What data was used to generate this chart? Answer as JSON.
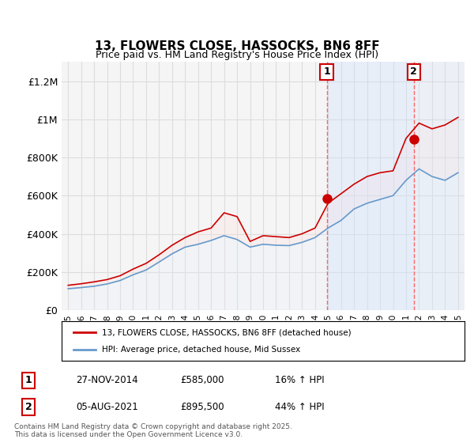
{
  "title": "13, FLOWERS CLOSE, HASSOCKS, BN6 8FF",
  "subtitle": "Price paid vs. HM Land Registry's House Price Index (HPI)",
  "ylabel_ticks": [
    "£0",
    "£200K",
    "£400K",
    "£600K",
    "£800K",
    "£1M",
    "£1.2M"
  ],
  "ytick_vals": [
    0,
    200000,
    400000,
    600000,
    800000,
    1000000,
    1200000
  ],
  "ylim": [
    0,
    1300000
  ],
  "xlim_start": 1995.0,
  "xlim_end": 2025.5,
  "background_color": "#ffffff",
  "plot_bg_color": "#f5f5f5",
  "grid_color": "#dddddd",
  "red_line_color": "#cc0000",
  "blue_line_color": "#6699cc",
  "blue_fill_color": "#ddeeff",
  "red_fill_color": "#ffdddd",
  "marker1_x": 2014.9,
  "marker1_y": 585000,
  "marker1_label": "1",
  "marker1_date": "27-NOV-2014",
  "marker1_price": "£585,000",
  "marker1_hpi": "16% ↑ HPI",
  "marker2_x": 2021.6,
  "marker2_y": 895500,
  "marker2_label": "2",
  "marker2_date": "05-AUG-2021",
  "marker2_price": "£895,500",
  "marker2_hpi": "44% ↑ HPI",
  "vline_color": "#ff4444",
  "legend_label_red": "13, FLOWERS CLOSE, HASSOCKS, BN6 8FF (detached house)",
  "legend_label_blue": "HPI: Average price, detached house, Mid Sussex",
  "footer_text": "Contains HM Land Registry data © Crown copyright and database right 2025.\nThis data is licensed under the Open Government Licence v3.0.",
  "x_years": [
    1995,
    1996,
    1997,
    1998,
    1999,
    2000,
    2001,
    2002,
    2003,
    2004,
    2005,
    2006,
    2007,
    2008,
    2009,
    2010,
    2011,
    2012,
    2013,
    2014,
    2015,
    2016,
    2017,
    2018,
    2019,
    2020,
    2021,
    2022,
    2023,
    2024,
    2025
  ],
  "hpi_values": [
    112000,
    118000,
    125000,
    137000,
    155000,
    185000,
    210000,
    252000,
    295000,
    330000,
    345000,
    365000,
    390000,
    370000,
    330000,
    345000,
    340000,
    338000,
    355000,
    380000,
    430000,
    470000,
    530000,
    560000,
    580000,
    600000,
    680000,
    740000,
    700000,
    680000,
    720000
  ],
  "red_values": [
    130000,
    138000,
    148000,
    160000,
    180000,
    215000,
    245000,
    290000,
    340000,
    380000,
    410000,
    430000,
    510000,
    490000,
    360000,
    390000,
    385000,
    380000,
    400000,
    430000,
    560000,
    610000,
    660000,
    700000,
    720000,
    730000,
    900000,
    980000,
    950000,
    970000,
    1010000
  ]
}
